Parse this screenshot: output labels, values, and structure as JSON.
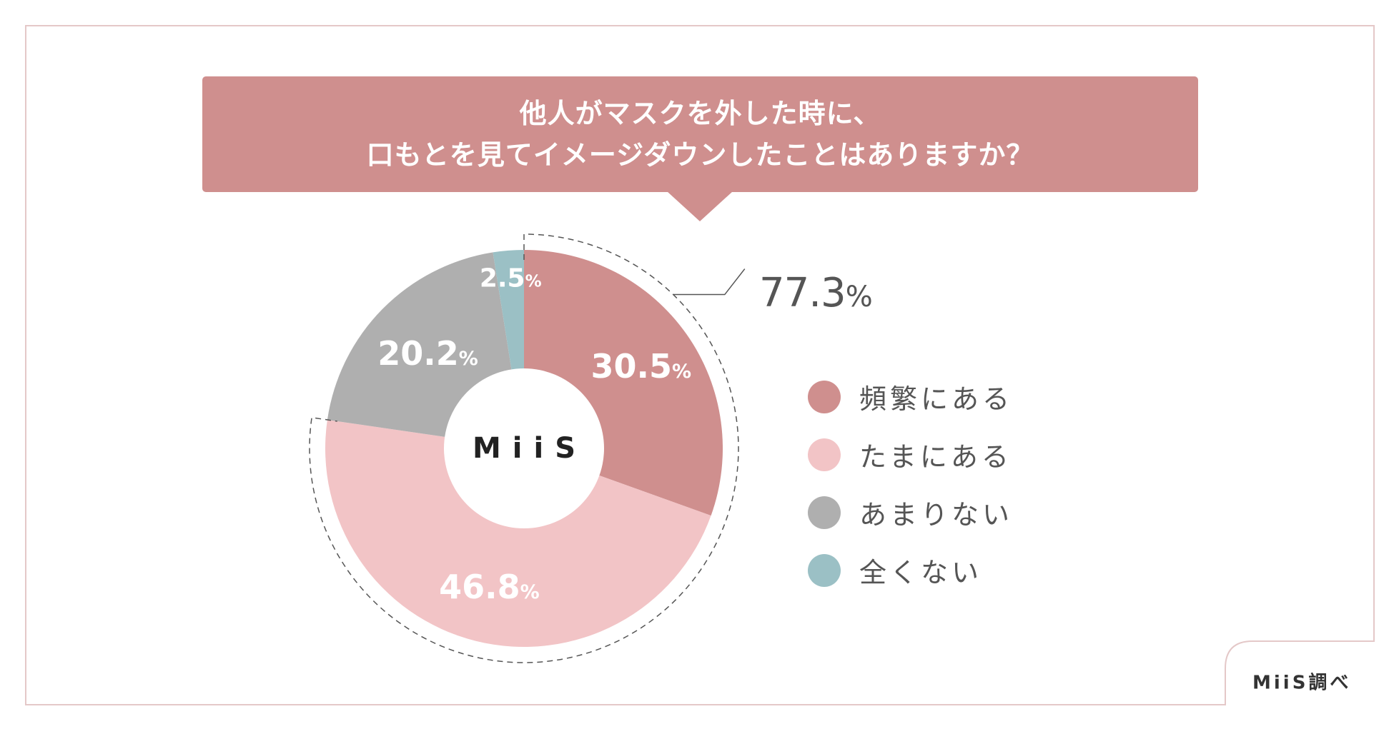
{
  "title": {
    "line1": "他人がマスクを外した時に、",
    "line2": "口もとを見てイメージダウンしたことはありますか？"
  },
  "center_logo": "MiiS",
  "source": "MiiS調べ",
  "colors": {
    "frequent": "#cf8f8e",
    "sometimes": "#f2c4c6",
    "rarely": "#afafaf",
    "never": "#9bc0c5",
    "title_bg": "#cf8f8e",
    "frame": "#e4c8c8"
  },
  "chart_data": {
    "type": "pie",
    "title": "他人がマスクを外した時に、口もとを見てイメージダウンしたことはありますか？",
    "categories": [
      "頻繁にある",
      "たまにある",
      "あまりない",
      "全くない"
    ],
    "values": [
      30.5,
      46.8,
      20.2,
      2.5
    ],
    "unit": "%",
    "labels": [
      {
        "num": "30.5",
        "unit": "%"
      },
      {
        "num": "46.8",
        "unit": "%"
      },
      {
        "num": "20.2",
        "unit": "%"
      },
      {
        "num": "2.5",
        "unit": "%"
      }
    ],
    "group_annotation": {
      "num": "77.3",
      "unit": "%",
      "covers": [
        "頻繁にある",
        "たまにある"
      ]
    },
    "legend_placement": "right",
    "donut": true
  }
}
